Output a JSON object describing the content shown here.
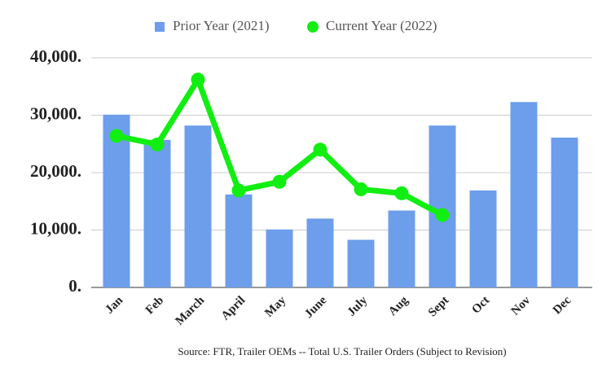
{
  "chart_data": {
    "type": "bar",
    "categories": [
      "Jan",
      "Feb",
      "March",
      "April",
      "May",
      "June",
      "July",
      "Aug",
      "Sept",
      "Oct",
      "Nov",
      "Dec"
    ],
    "series": [
      {
        "name": "Prior Year (2021)",
        "type": "bar",
        "color": "#6d9eeb",
        "values": [
          30100,
          25700,
          28200,
          16200,
          10100,
          12000,
          8300,
          13400,
          28200,
          16900,
          32300,
          26100
        ]
      },
      {
        "name": "Current Year (2022)",
        "type": "line",
        "color": "#11ee11",
        "values": [
          26400,
          24900,
          36200,
          16900,
          18400,
          24000,
          17100,
          16400,
          12600,
          null,
          null,
          null
        ]
      }
    ],
    "ylim": [
      0,
      40000
    ],
    "yticks": [
      {
        "value": 0,
        "label": "0."
      },
      {
        "value": 10000,
        "label": "10,000."
      },
      {
        "value": 20000,
        "label": "20,000."
      },
      {
        "value": 30000,
        "label": "30,000."
      },
      {
        "value": 40000,
        "label": "40,000."
      }
    ],
    "grid": true,
    "legend": "top",
    "annotation": "Source: FTR, Trailer OEMs -- Total U.S. Trailer Orders (Subject to Revision)"
  }
}
